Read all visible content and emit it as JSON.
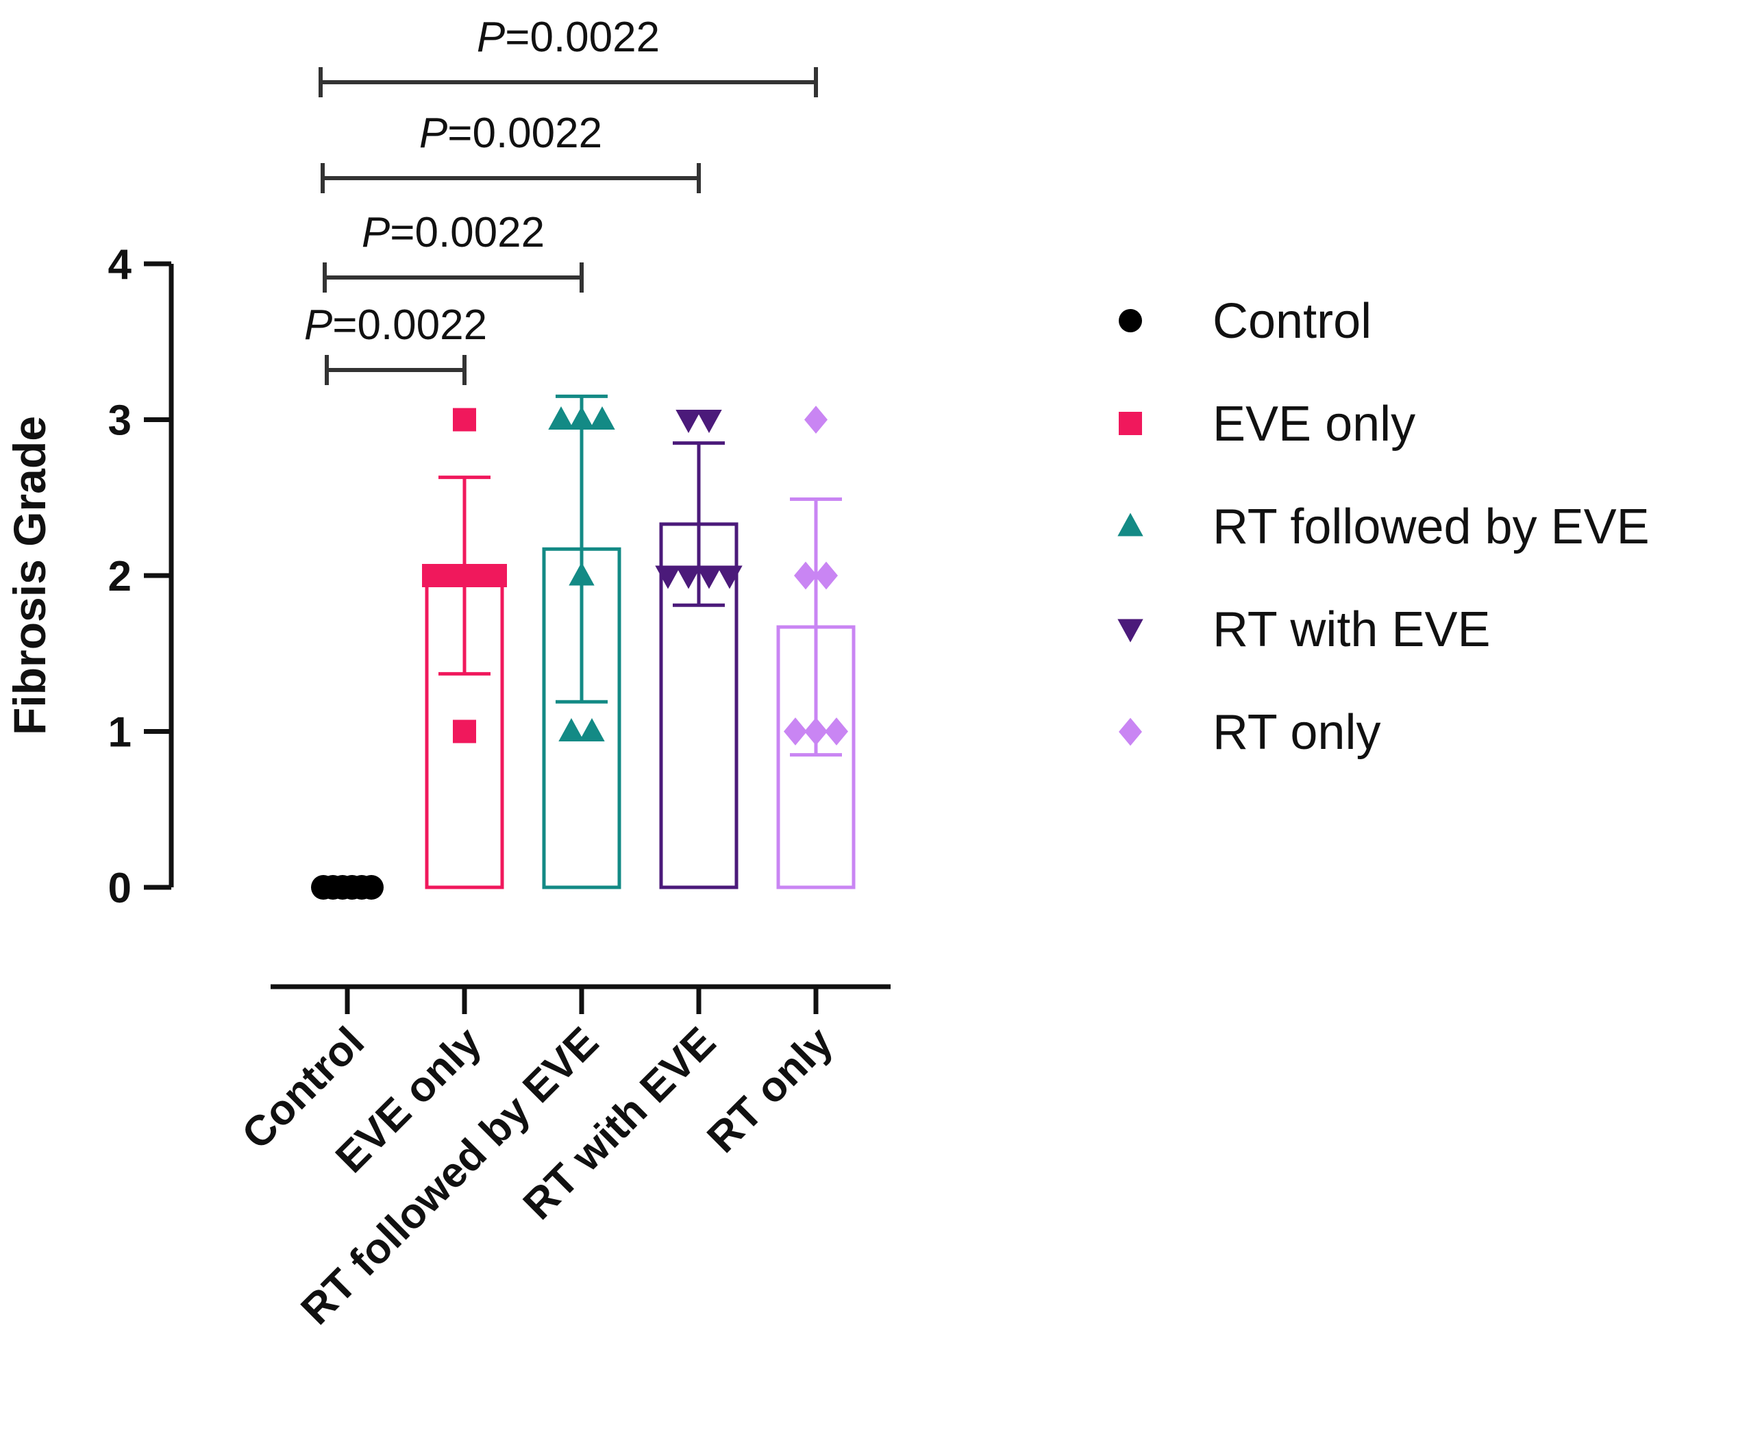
{
  "chart_data": {
    "type": "bar",
    "title": "",
    "xlabel": "",
    "ylabel": "Fibrosis Grade",
    "ylim": [
      0,
      4
    ],
    "yticks": [
      "0",
      "1",
      "2",
      "3",
      "4"
    ],
    "grid": false,
    "legend_position": "right",
    "categories": [
      "Control",
      "EVE only",
      "RT followed by EVE",
      "RT with EVE",
      "RT only"
    ],
    "series": [
      {
        "name": "Control",
        "mean": 0,
        "sd": 0,
        "points": [
          0,
          0,
          0,
          0,
          0,
          0
        ],
        "marker": "circle",
        "color": "#000000",
        "bar": false
      },
      {
        "name": "EVE only",
        "mean": 2.0,
        "sd": 0.63,
        "points": [
          3,
          2,
          2,
          2,
          2,
          1
        ],
        "marker": "square",
        "color": "#f0185c",
        "bar": true
      },
      {
        "name": "RT followed by EVE",
        "mean": 2.17,
        "sd": 0.98,
        "points": [
          3,
          3,
          3,
          2,
          1,
          1
        ],
        "marker": "triangle-up",
        "color": "#138a85",
        "bar": true
      },
      {
        "name": "RT with EVE",
        "mean": 2.33,
        "sd": 0.52,
        "points": [
          3,
          3,
          2,
          2,
          2,
          2
        ],
        "marker": "triangle-down",
        "color": "#4b1a7a",
        "bar": true
      },
      {
        "name": "RT only",
        "mean": 1.67,
        "sd": 0.82,
        "points": [
          3,
          2,
          2,
          1,
          1,
          1
        ],
        "marker": "diamond",
        "color": "#c985f3",
        "bar": true
      }
    ],
    "comparisons": [
      {
        "from": "Control",
        "to": "EVE only",
        "label_italic": "P",
        "label_rest": "=0.0022"
      },
      {
        "from": "Control",
        "to": "RT followed by EVE",
        "label_italic": "P",
        "label_rest": "=0.0022"
      },
      {
        "from": "Control",
        "to": "RT with EVE",
        "label_italic": "P",
        "label_rest": "=0.0022"
      },
      {
        "from": "Control",
        "to": "RT only",
        "label_italic": "P",
        "label_rest": "=0.0022"
      }
    ],
    "legend": [
      {
        "label": "Control",
        "marker": "circle",
        "color": "#000000"
      },
      {
        "label": "EVE only",
        "marker": "square",
        "color": "#f0185c"
      },
      {
        "label": "RT followed by EVE",
        "marker": "triangle-up",
        "color": "#138a85"
      },
      {
        "label": "RT with EVE",
        "marker": "triangle-down",
        "color": "#4b1a7a"
      },
      {
        "label": "RT only",
        "marker": "diamond",
        "color": "#c985f3"
      }
    ]
  }
}
